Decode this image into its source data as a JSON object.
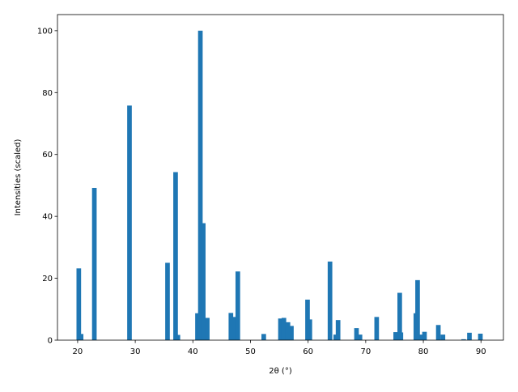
{
  "chart_data": {
    "type": "bar",
    "xlabel": "2θ (°)",
    "ylabel": "Intensities (scaled)",
    "x": [
      20.2,
      20.6,
      22.9,
      29.0,
      35.6,
      37.0,
      37.4,
      40.8,
      41.3,
      41.8,
      42.5,
      46.6,
      47.1,
      47.8,
      52.3,
      55.2,
      55.8,
      56.5,
      57.1,
      59.9,
      60.3,
      63.8,
      64.8,
      65.2,
      68.4,
      69.0,
      71.9,
      75.2,
      75.9,
      76.1,
      78.7,
      79.0,
      79.7,
      80.2,
      82.6,
      83.4,
      87.0,
      88.0,
      89.9
    ],
    "values": [
      23.2,
      2,
      49.2,
      75.8,
      25,
      54.3,
      1.7,
      8.7,
      100,
      37.8,
      7.2,
      8.8,
      7.5,
      22.2,
      2,
      7,
      7.2,
      5.8,
      4.6,
      13.1,
      6.7,
      25.4,
      1.8,
      6.5,
      3.9,
      1.8,
      7.5,
      2.6,
      15.3,
      2.5,
      8.7,
      19.4,
      1.8,
      2.7,
      4.9,
      1.8,
      0.3,
      2.4,
      2.1
    ],
    "bar_width": 0.8,
    "color": "#1f77b4",
    "xlim": [
      16.5,
      93.9
    ],
    "xticks": [
      20,
      30,
      40,
      50,
      60,
      70,
      80,
      90
    ],
    "ylim": [
      0,
      105.2
    ],
    "yticks": [
      0,
      20,
      40,
      60,
      80,
      100
    ]
  }
}
